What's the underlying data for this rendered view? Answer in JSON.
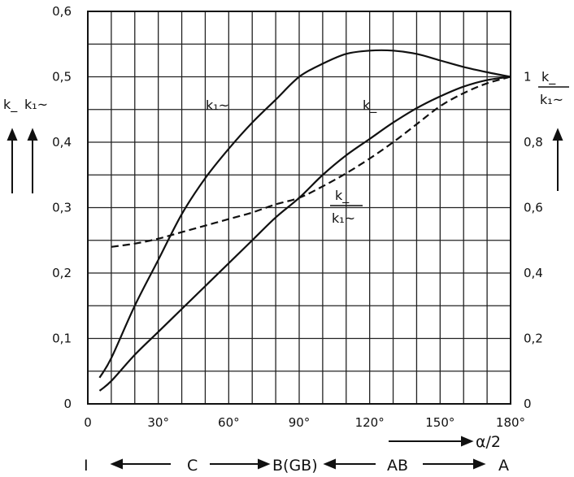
{
  "chart_data": {
    "type": "line",
    "x_axis": {
      "range": [
        0,
        180
      ],
      "ticks": [
        0,
        30,
        60,
        90,
        120,
        150,
        180
      ],
      "tick_labels": [
        "0",
        "30°",
        "60°",
        "90°",
        "120°",
        "150°",
        "180°"
      ],
      "label": "α/2"
    },
    "y_left": {
      "range": [
        0,
        0.6
      ],
      "ticks": [
        0,
        0.1,
        0.2,
        0.3,
        0.4,
        0.5,
        0.6
      ],
      "tick_labels": [
        "0",
        "0,1",
        "0,2",
        "0,3",
        "0,4",
        "0,5",
        "0,6"
      ],
      "label_parts": [
        "k_",
        "k₁~"
      ]
    },
    "y_right": {
      "range": [
        0,
        1.2
      ],
      "ticks": [
        0,
        0.2,
        0.4,
        0.6,
        0.8,
        1.0
      ],
      "tick_labels": [
        "0",
        "0,2",
        "0,4",
        "0,6",
        "0,8",
        "1"
      ],
      "label_num": "k_",
      "label_den": "k₁~"
    },
    "grid": true,
    "series": [
      {
        "name": "k₁~",
        "axis": "left",
        "style": "solid",
        "points": [
          [
            5,
            0.04
          ],
          [
            10,
            0.07
          ],
          [
            20,
            0.15
          ],
          [
            30,
            0.22
          ],
          [
            40,
            0.29
          ],
          [
            50,
            0.345
          ],
          [
            60,
            0.39
          ],
          [
            70,
            0.43
          ],
          [
            80,
            0.465
          ],
          [
            90,
            0.5
          ],
          [
            100,
            0.52
          ],
          [
            110,
            0.535
          ],
          [
            120,
            0.54
          ],
          [
            130,
            0.54
          ],
          [
            140,
            0.535
          ],
          [
            150,
            0.525
          ],
          [
            160,
            0.515
          ],
          [
            170,
            0.507
          ],
          [
            180,
            0.5
          ]
        ]
      },
      {
        "name": "k_",
        "axis": "left",
        "style": "solid",
        "points": [
          [
            5,
            0.02
          ],
          [
            10,
            0.035
          ],
          [
            20,
            0.075
          ],
          [
            30,
            0.11
          ],
          [
            40,
            0.145
          ],
          [
            50,
            0.18
          ],
          [
            60,
            0.215
          ],
          [
            70,
            0.25
          ],
          [
            80,
            0.285
          ],
          [
            90,
            0.315
          ],
          [
            100,
            0.35
          ],
          [
            110,
            0.38
          ],
          [
            120,
            0.405
          ],
          [
            130,
            0.43
          ],
          [
            140,
            0.452
          ],
          [
            150,
            0.47
          ],
          [
            160,
            0.485
          ],
          [
            170,
            0.495
          ],
          [
            180,
            0.5
          ]
        ]
      },
      {
        "name": "k_/k₁~",
        "axis": "right",
        "style": "dashed",
        "points": [
          [
            10,
            0.48
          ],
          [
            20,
            0.49
          ],
          [
            30,
            0.505
          ],
          [
            40,
            0.525
          ],
          [
            50,
            0.545
          ],
          [
            60,
            0.565
          ],
          [
            70,
            0.585
          ],
          [
            80,
            0.61
          ],
          [
            90,
            0.63
          ],
          [
            100,
            0.665
          ],
          [
            110,
            0.705
          ],
          [
            120,
            0.75
          ],
          [
            130,
            0.8
          ],
          [
            140,
            0.855
          ],
          [
            150,
            0.91
          ],
          [
            160,
            0.95
          ],
          [
            170,
            0.98
          ],
          [
            180,
            1.0
          ]
        ]
      }
    ],
    "curve_labels": {
      "k1": "k₁~",
      "k": "k_",
      "ratio_num": "k_",
      "ratio_den": "k₁~"
    },
    "regions": {
      "start_mark": "I",
      "labels": [
        "C",
        "B(GB)",
        "AB",
        "A"
      ]
    }
  }
}
